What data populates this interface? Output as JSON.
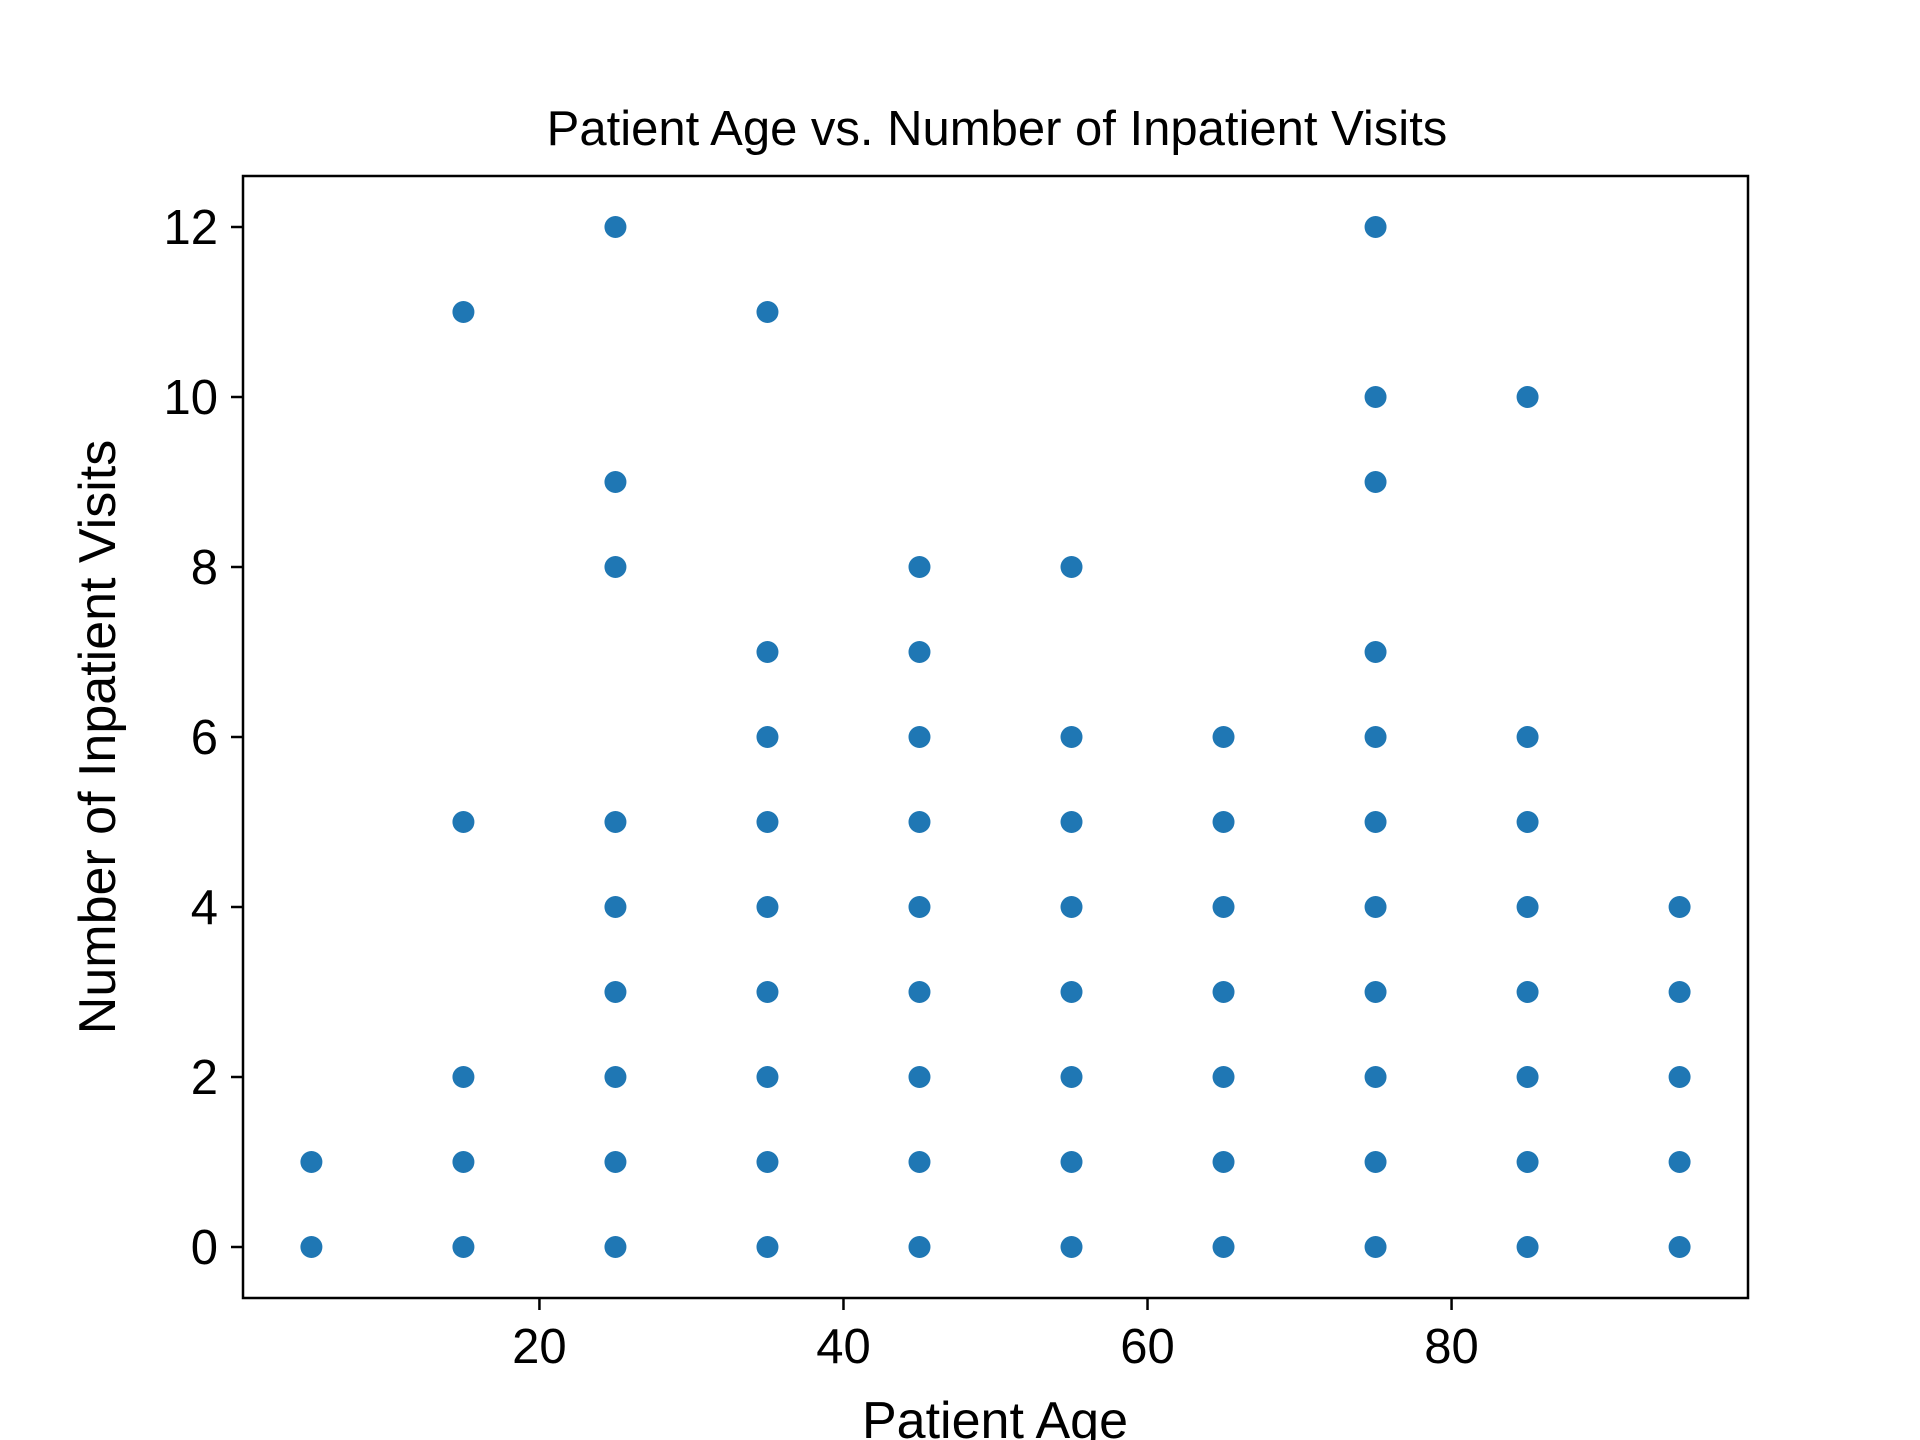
{
  "chart_data": {
    "type": "scatter",
    "title": "Patient Age vs. Number of Inpatient Visits",
    "xlabel": "Patient Age",
    "ylabel": "Number of Inpatient Visits",
    "xlim": [
      0.5,
      99.5
    ],
    "ylim": [
      -0.6,
      12.6
    ],
    "xticks": [
      20,
      40,
      60,
      80
    ],
    "yticks": [
      0,
      2,
      4,
      6,
      8,
      10,
      12
    ],
    "grid": false,
    "marker_color": "#1f77b4",
    "points": [
      {
        "x": 5,
        "y": 0
      },
      {
        "x": 5,
        "y": 1
      },
      {
        "x": 15,
        "y": 0
      },
      {
        "x": 15,
        "y": 1
      },
      {
        "x": 15,
        "y": 2
      },
      {
        "x": 15,
        "y": 5
      },
      {
        "x": 15,
        "y": 11
      },
      {
        "x": 25,
        "y": 0
      },
      {
        "x": 25,
        "y": 1
      },
      {
        "x": 25,
        "y": 2
      },
      {
        "x": 25,
        "y": 3
      },
      {
        "x": 25,
        "y": 4
      },
      {
        "x": 25,
        "y": 5
      },
      {
        "x": 25,
        "y": 8
      },
      {
        "x": 25,
        "y": 9
      },
      {
        "x": 25,
        "y": 12
      },
      {
        "x": 35,
        "y": 0
      },
      {
        "x": 35,
        "y": 1
      },
      {
        "x": 35,
        "y": 2
      },
      {
        "x": 35,
        "y": 3
      },
      {
        "x": 35,
        "y": 4
      },
      {
        "x": 35,
        "y": 5
      },
      {
        "x": 35,
        "y": 6
      },
      {
        "x": 35,
        "y": 7
      },
      {
        "x": 35,
        "y": 11
      },
      {
        "x": 45,
        "y": 0
      },
      {
        "x": 45,
        "y": 1
      },
      {
        "x": 45,
        "y": 2
      },
      {
        "x": 45,
        "y": 3
      },
      {
        "x": 45,
        "y": 4
      },
      {
        "x": 45,
        "y": 5
      },
      {
        "x": 45,
        "y": 6
      },
      {
        "x": 45,
        "y": 7
      },
      {
        "x": 45,
        "y": 8
      },
      {
        "x": 55,
        "y": 0
      },
      {
        "x": 55,
        "y": 1
      },
      {
        "x": 55,
        "y": 2
      },
      {
        "x": 55,
        "y": 3
      },
      {
        "x": 55,
        "y": 4
      },
      {
        "x": 55,
        "y": 5
      },
      {
        "x": 55,
        "y": 6
      },
      {
        "x": 55,
        "y": 8
      },
      {
        "x": 65,
        "y": 0
      },
      {
        "x": 65,
        "y": 1
      },
      {
        "x": 65,
        "y": 2
      },
      {
        "x": 65,
        "y": 3
      },
      {
        "x": 65,
        "y": 4
      },
      {
        "x": 65,
        "y": 5
      },
      {
        "x": 65,
        "y": 6
      },
      {
        "x": 75,
        "y": 0
      },
      {
        "x": 75,
        "y": 1
      },
      {
        "x": 75,
        "y": 2
      },
      {
        "x": 75,
        "y": 3
      },
      {
        "x": 75,
        "y": 4
      },
      {
        "x": 75,
        "y": 5
      },
      {
        "x": 75,
        "y": 6
      },
      {
        "x": 75,
        "y": 7
      },
      {
        "x": 75,
        "y": 9
      },
      {
        "x": 75,
        "y": 10
      },
      {
        "x": 75,
        "y": 12
      },
      {
        "x": 85,
        "y": 0
      },
      {
        "x": 85,
        "y": 1
      },
      {
        "x": 85,
        "y": 2
      },
      {
        "x": 85,
        "y": 3
      },
      {
        "x": 85,
        "y": 4
      },
      {
        "x": 85,
        "y": 5
      },
      {
        "x": 85,
        "y": 6
      },
      {
        "x": 85,
        "y": 10
      },
      {
        "x": 95,
        "y": 0
      },
      {
        "x": 95,
        "y": 1
      },
      {
        "x": 95,
        "y": 2
      },
      {
        "x": 95,
        "y": 3
      },
      {
        "x": 95,
        "y": 4
      }
    ]
  }
}
